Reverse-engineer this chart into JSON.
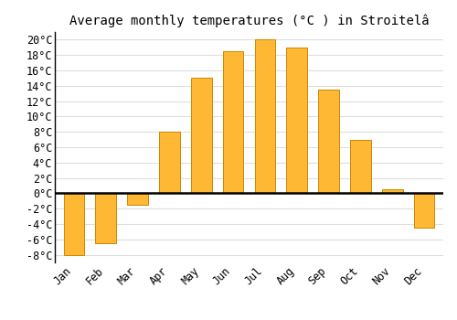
{
  "title": "Average monthly temperatures (°C ) in Stroitelâ",
  "months": [
    "Jan",
    "Feb",
    "Mar",
    "Apr",
    "May",
    "Jun",
    "Jul",
    "Aug",
    "Sep",
    "Oct",
    "Nov",
    "Dec"
  ],
  "values": [
    -8,
    -6.5,
    -1.5,
    8,
    15,
    18.5,
    20,
    19,
    13.5,
    7,
    0.5,
    -4.5
  ],
  "bar_color": "#FFB833",
  "bar_edge_color": "#CC8800",
  "ylim": [
    -9,
    21
  ],
  "yticks": [
    -8,
    -6,
    -4,
    -2,
    0,
    2,
    4,
    6,
    8,
    10,
    12,
    14,
    16,
    18,
    20
  ],
  "background_color": "#FFFFFF",
  "grid_color": "#DDDDDD",
  "title_fontsize": 10,
  "tick_fontsize": 8.5
}
